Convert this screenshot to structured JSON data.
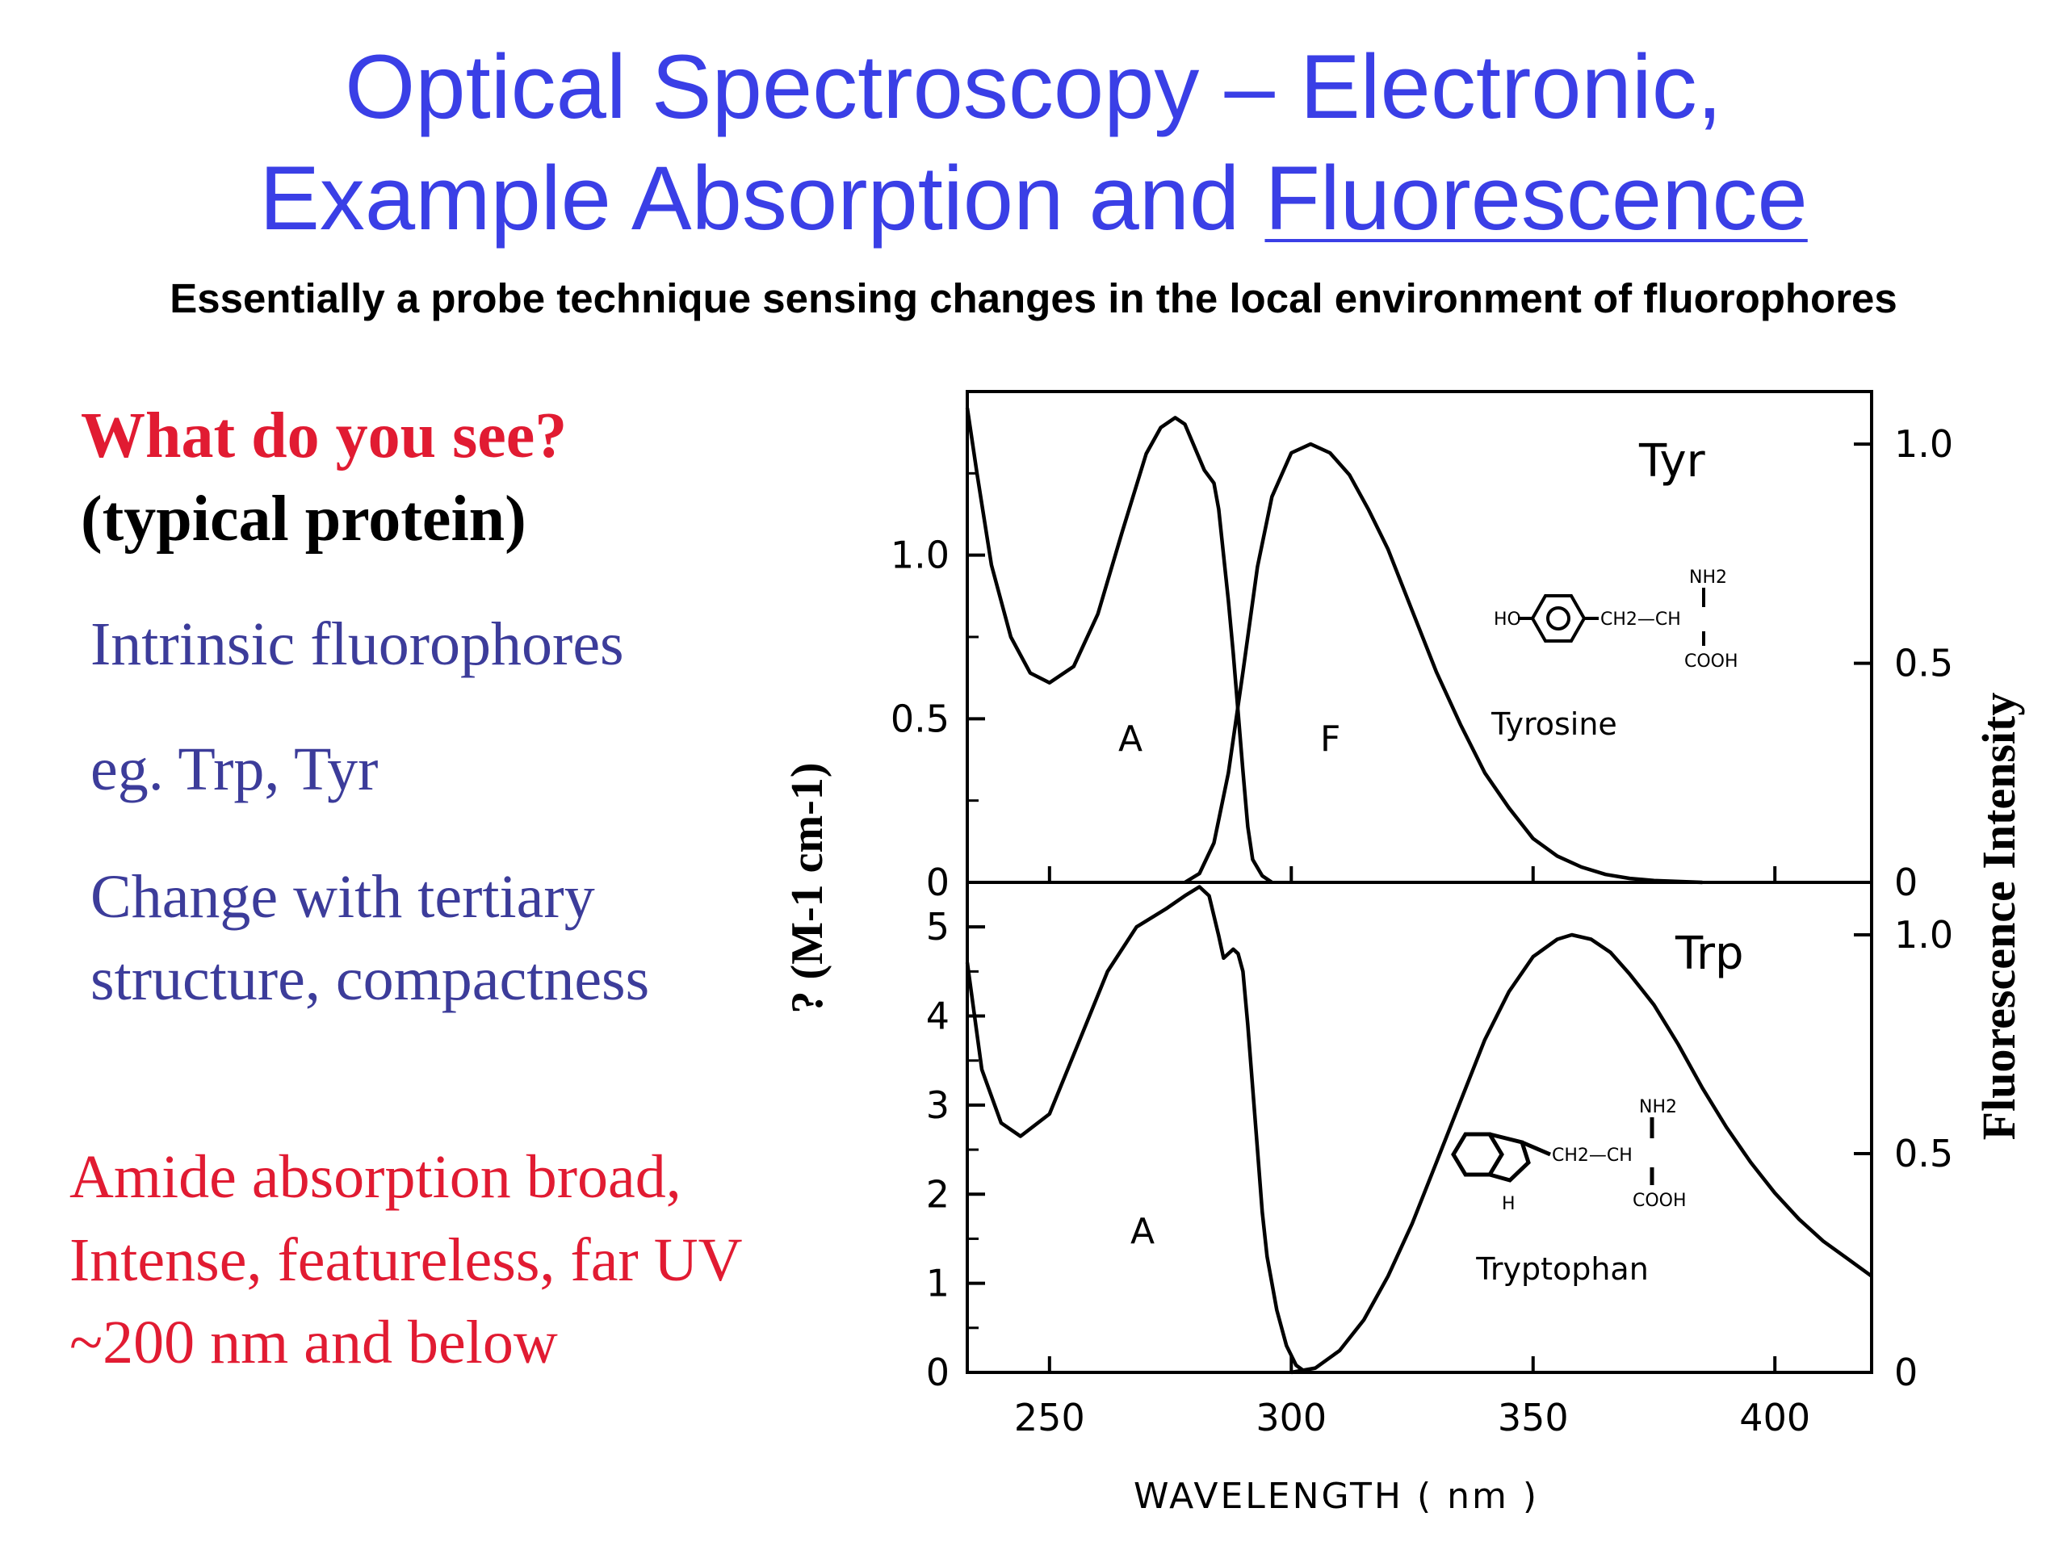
{
  "slide": {
    "title_line1": "Optical Spectroscopy – Electronic,",
    "title_line2_a": "Example Absorption and ",
    "title_line2_b": "Fluorescence",
    "subtitle": "Essentially a probe technique sensing changes in the local environment of fluorophores",
    "question": "What do you see?",
    "question_sub": "(typical protein)",
    "point1": "Intrinsic fluorophores",
    "point2": "eg. Trp, Tyr",
    "point3a": "Change with tertiary",
    "point3b": "structure, compactness",
    "amide1": "Amide absorption broad,",
    "amide2": "Intense, featureless, far UV",
    "amide3": "~200 nm and below",
    "title_color": "#3a3fe6",
    "question_color": "#e11b32",
    "point_color": "#3c3c9a"
  },
  "chart_data": {
    "type": "line",
    "xlabel": "WAVELENGTH  ( nm )",
    "ylabel_left": "? (M-1 cm-1)",
    "ylabel_right": "Fluorescence Intensity",
    "xlim": [
      233,
      420
    ],
    "xticks": [
      "250",
      "300",
      "350",
      "400"
    ],
    "panels": [
      {
        "name": "Tyr",
        "molecule": "Tyrosine",
        "ylim": [
          0,
          1.5
        ],
        "yticks_left": [
          "0",
          "0.5",
          "1.0"
        ],
        "yticks_right": [
          "0",
          "0.5",
          "1.0"
        ],
        "series": [
          {
            "name": "A",
            "x": [
              233,
              235,
              238,
              242,
              246,
              250,
              255,
              260,
              265,
              270,
              273,
              276,
              278,
              280,
              282,
              284,
              285,
              286,
              287,
              288,
              289,
              290,
              291,
              292,
              294,
              296
            ],
            "y": [
              1.45,
              1.25,
              0.97,
              0.75,
              0.64,
              0.61,
              0.66,
              0.82,
              1.07,
              1.31,
              1.39,
              1.42,
              1.4,
              1.33,
              1.26,
              1.22,
              1.14,
              1.0,
              0.86,
              0.7,
              0.52,
              0.34,
              0.17,
              0.07,
              0.02,
              0
            ]
          },
          {
            "name": "F",
            "x": [
              278,
              281,
              284,
              287,
              290,
              293,
              296,
              300,
              304,
              308,
              312,
              316,
              320,
              325,
              330,
              335,
              340,
              345,
              350,
              355,
              360,
              365,
              370,
              375,
              380,
              385
            ],
            "y": [
              0,
              0.02,
              0.09,
              0.25,
              0.48,
              0.72,
              0.88,
              0.98,
              1.0,
              0.98,
              0.93,
              0.85,
              0.76,
              0.62,
              0.48,
              0.36,
              0.25,
              0.17,
              0.1,
              0.06,
              0.035,
              0.018,
              0.009,
              0.004,
              0.002,
              0
            ]
          }
        ],
        "peak_labels": [
          "A",
          "F"
        ]
      },
      {
        "name": "Trp",
        "molecule": "Tryptophan",
        "ylim": [
          0,
          5.5
        ],
        "yticks_left": [
          "0",
          "1",
          "2",
          "3",
          "4",
          "5"
        ],
        "yticks_right": [
          "0",
          "0.5",
          "1.0"
        ],
        "series": [
          {
            "name": "A",
            "x": [
              233,
              236,
              240,
              244,
              250,
              256,
              262,
              268,
              274,
              278,
              281,
              283,
              285,
              286,
              287,
              288,
              289,
              290,
              291,
              292,
              293,
              294,
              295,
              297,
              299,
              301,
              303
            ],
            "y": [
              4.6,
              3.4,
              2.8,
              2.65,
              2.9,
              3.7,
              4.5,
              5.0,
              5.2,
              5.35,
              5.45,
              5.35,
              4.9,
              4.65,
              4.7,
              4.75,
              4.7,
              4.5,
              3.9,
              3.2,
              2.5,
              1.8,
              1.3,
              0.7,
              0.3,
              0.08,
              0
            ]
          },
          {
            "name": "F",
            "x": [
              300,
              305,
              310,
              315,
              320,
              325,
              330,
              335,
              340,
              345,
              350,
              355,
              358,
              362,
              366,
              370,
              375,
              380,
              385,
              390,
              395,
              400,
              405,
              410,
              415,
              420
            ],
            "y": [
              0,
              0.01,
              0.05,
              0.12,
              0.22,
              0.34,
              0.48,
              0.62,
              0.76,
              0.87,
              0.95,
              0.99,
              1.0,
              0.99,
              0.96,
              0.91,
              0.84,
              0.75,
              0.65,
              0.56,
              0.48,
              0.41,
              0.35,
              0.3,
              0.26,
              0.22
            ]
          }
        ],
        "peak_labels": [
          "A"
        ]
      }
    ]
  }
}
